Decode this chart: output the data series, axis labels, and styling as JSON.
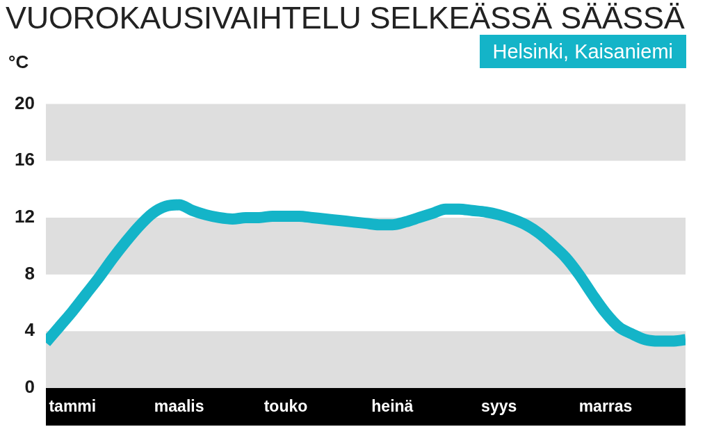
{
  "chart_data": {
    "type": "line",
    "title": "VUOROKAUSIVAIHTELU SELKEÄSSÄ SÄÄSSÄ",
    "ylabel": "°C",
    "categories": [
      null,
      null,
      "tammi",
      null,
      null,
      null,
      null,
      null,
      null,
      null,
      "maalis",
      null,
      null,
      null,
      null,
      null,
      null,
      null,
      "touko",
      null,
      null,
      null,
      null,
      null,
      null,
      null,
      "heinä",
      null,
      null,
      null,
      null,
      null,
      null,
      null,
      "syys",
      null,
      null,
      null,
      null,
      null,
      null,
      null,
      "marras",
      null,
      null,
      null,
      null,
      null,
      null
    ],
    "series": [
      {
        "name": "Helsinki, Kaisaniemi",
        "color": "#14b4c8",
        "values": [
          3.2,
          4.3,
          5.4,
          6.6,
          7.8,
          9.1,
          10.3,
          11.4,
          12.3,
          12.8,
          12.9,
          12.5,
          12.2,
          12.0,
          11.9,
          12.0,
          12.0,
          12.1,
          12.1,
          12.1,
          12.0,
          11.9,
          11.8,
          11.7,
          11.6,
          11.5,
          11.5,
          11.7,
          12.0,
          12.3,
          12.6,
          12.6,
          12.5,
          12.4,
          12.2,
          11.9,
          11.5,
          10.9,
          10.1,
          9.2,
          8.0,
          6.6,
          5.3,
          4.3,
          3.8,
          3.4,
          3.3,
          3.3,
          3.4
        ]
      }
    ],
    "ylim": [
      0,
      20
    ],
    "yticks": [
      0,
      4,
      8,
      12,
      16,
      20
    ],
    "bands": [
      {
        "axis": "y",
        "from": 0,
        "to": 4,
        "color": "#dedede"
      },
      {
        "axis": "y",
        "from": 8,
        "to": 12,
        "color": "#dedede"
      },
      {
        "axis": "y",
        "from": 16,
        "to": 20,
        "color": "#dedede"
      }
    ],
    "grid": false,
    "legend": "top right",
    "marker": "none",
    "line_style": "solid"
  }
}
